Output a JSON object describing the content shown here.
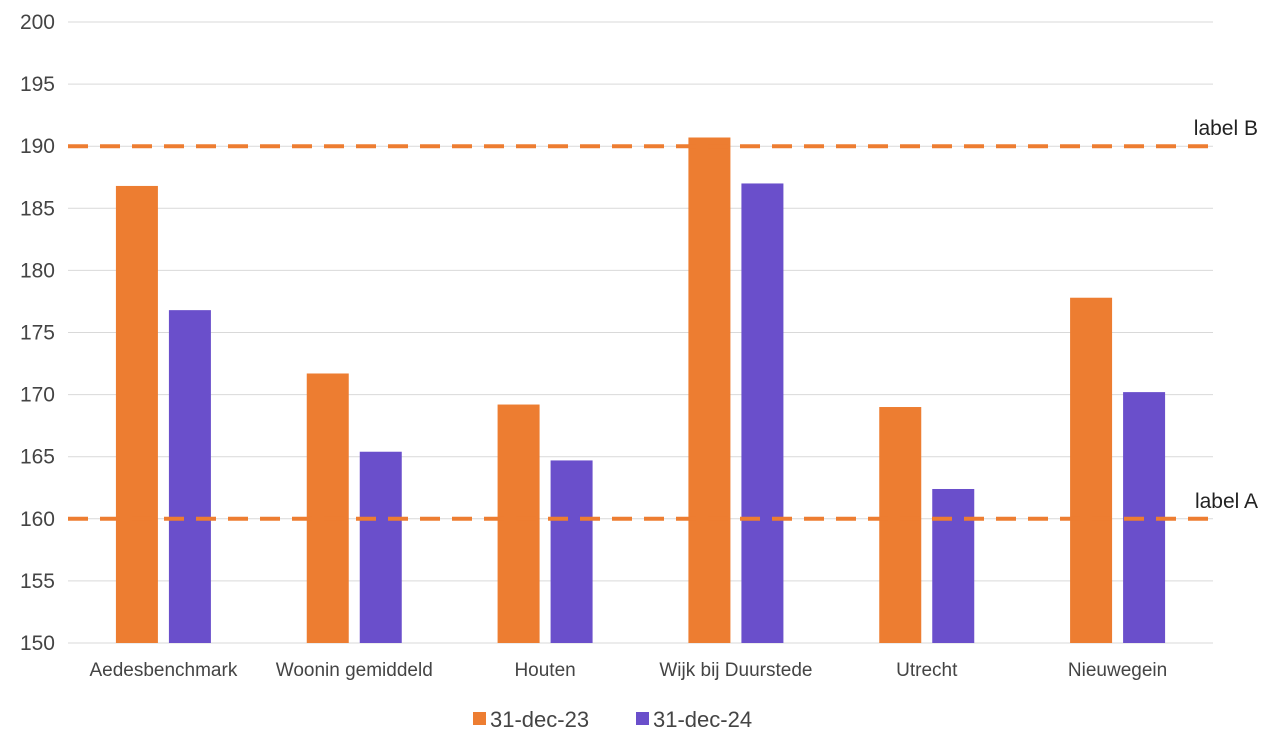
{
  "chart_data": {
    "type": "bar",
    "categories": [
      "Aedesbenchmark",
      "Woonin gemiddeld",
      "Houten",
      "Wijk bij Duurstede",
      "Utrecht",
      "Nieuwegein"
    ],
    "series": [
      {
        "name": "31-dec-23",
        "color": "#ED7D31",
        "values": [
          186.8,
          171.7,
          169.2,
          190.7,
          169.0,
          177.8
        ]
      },
      {
        "name": "31-dec-24",
        "color": "#6A4FCB",
        "values": [
          176.8,
          165.4,
          164.7,
          187.0,
          162.4,
          170.2
        ]
      }
    ],
    "ylim": [
      150,
      200
    ],
    "yticks": [
      150,
      155,
      160,
      165,
      170,
      175,
      180,
      185,
      190,
      195,
      200
    ],
    "grid": true,
    "legend": "bottom",
    "reference_lines": [
      {
        "value": 190,
        "label": "label B",
        "color": "#ED7D31",
        "style": "dashed"
      },
      {
        "value": 160,
        "label": "label A",
        "color": "#ED7D31",
        "style": "dashed"
      }
    ],
    "title": "",
    "xlabel": "",
    "ylabel": ""
  }
}
